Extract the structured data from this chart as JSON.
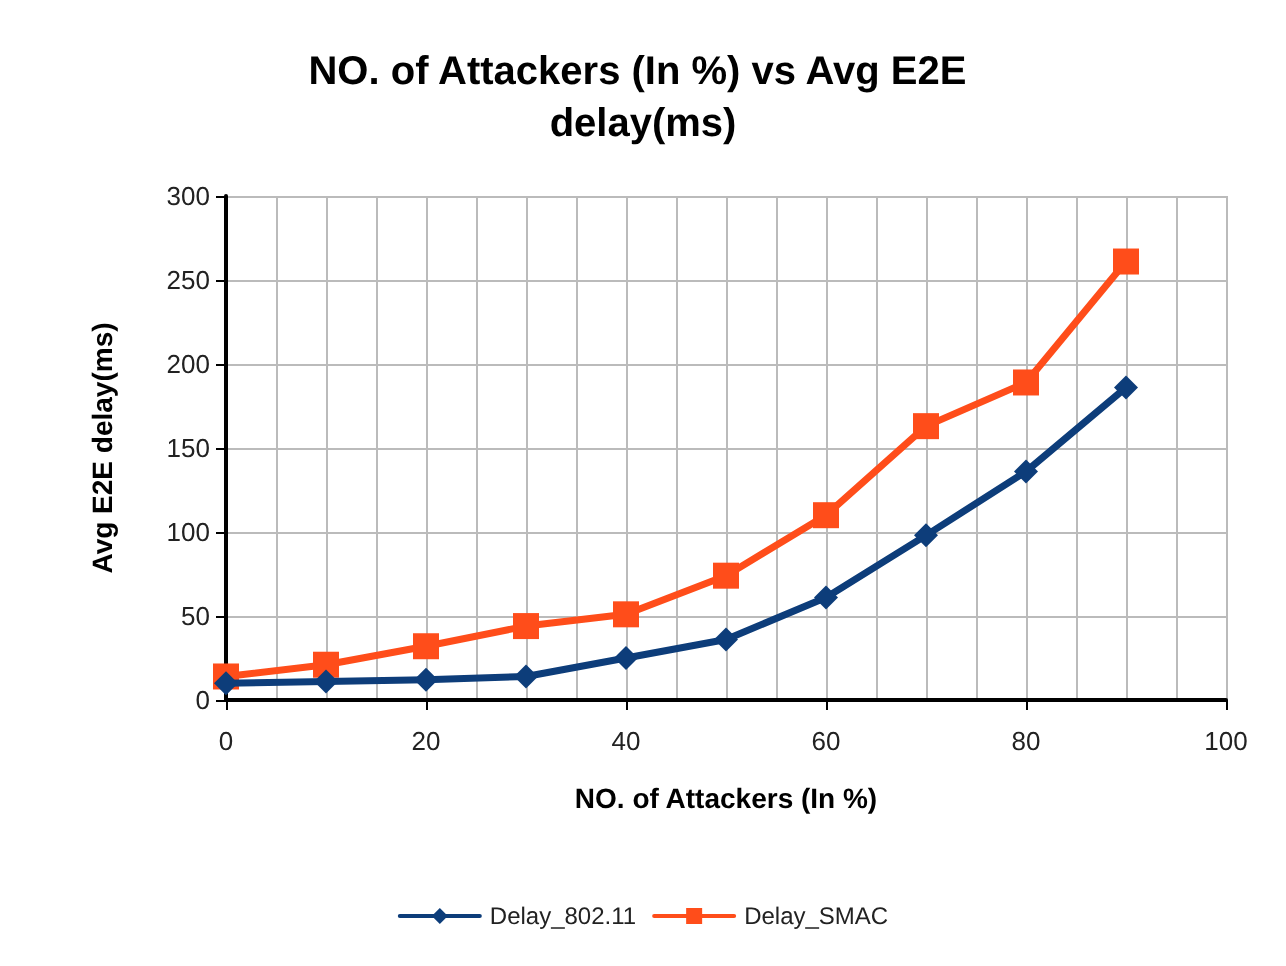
{
  "chart_data": {
    "type": "line",
    "title": "NO. of Attackers (In %) vs Avg E2E delay(ms)",
    "xlabel": "NO. of Attackers (In %)",
    "ylabel": "Avg E2E delay(ms)",
    "x": [
      0,
      10,
      20,
      30,
      40,
      50,
      60,
      70,
      80,
      90
    ],
    "series": [
      {
        "name": "Delay_802.11",
        "color": "#0d3d7a",
        "marker": "diamond",
        "values": [
          10,
          11,
          12,
          14,
          25,
          36,
          61,
          98,
          136,
          186
        ]
      },
      {
        "name": "Delay_SMAC",
        "color": "#ff4d1a",
        "marker": "square",
        "values": [
          14,
          21,
          32,
          44,
          51,
          74,
          110,
          163,
          189,
          261
        ]
      }
    ],
    "xlim": [
      0,
      100
    ],
    "xticks": [
      0,
      20,
      40,
      60,
      80,
      100
    ],
    "ylim": [
      0,
      300
    ],
    "yticks": [
      0,
      50,
      100,
      150,
      200,
      250,
      300
    ],
    "grid": true,
    "legend": "bottom",
    "line_style": "solid"
  }
}
